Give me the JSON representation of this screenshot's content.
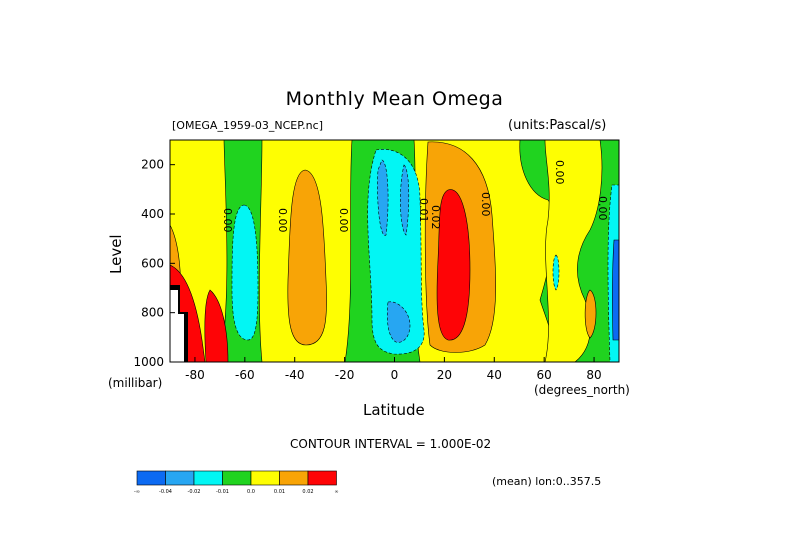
{
  "title": "Monthly Mean Omega",
  "subtitle_left": "[OMEGA_1959-03_NCEP.nc]",
  "subtitle_right": "(units:Pascal/s)",
  "axis_x_label": "Latitude",
  "axis_x_unit": "(degrees_north)",
  "axis_y_label": "Level",
  "axis_y_unit": "(millibar)",
  "contour_interval_text": "CONTOUR INTERVAL = 1.000E-02",
  "footnote": "(mean) lon:0..357.5",
  "contour_labels": [
    "0.00",
    "0.00",
    "0.00",
    "0.00",
    "0.02",
    "0.01",
    "0.00",
    "0.00"
  ],
  "chart_data": {
    "type": "heatmap",
    "x_ticks": [
      -80,
      -60,
      -40,
      -20,
      0,
      20,
      40,
      60,
      80
    ],
    "x_tick_labels": [
      "-80",
      "-60",
      "-40",
      "-20",
      "0",
      "20",
      "40",
      "60",
      "80"
    ],
    "y_ticks": [
      200,
      400,
      600,
      800,
      1000
    ],
    "y_tick_labels": [
      "200",
      "400",
      "600",
      "800",
      "1000"
    ],
    "xlim": [
      -90,
      90
    ],
    "ylim": [
      1000,
      100
    ],
    "colorbar": {
      "labels": [
        "-∞",
        "-0.04",
        "-0.02",
        "-0.01",
        "0.0",
        "0.01",
        "0.02",
        "∞"
      ],
      "colors": [
        "#0c6af2",
        "#27a6f2",
        "#02f6f4",
        "#20d31f",
        "#fefe02",
        "#f8a406",
        "#fe0406"
      ]
    },
    "bands": [
      {
        "lat": -88,
        "level": 175,
        "value": -0.005
      },
      {
        "lat": -75,
        "level": 500,
        "value": 0.005
      },
      {
        "lat": -67,
        "level": 520,
        "value": -0.015
      },
      {
        "lat": -38,
        "level": 600,
        "value": 0.015
      },
      {
        "lat": -3,
        "level": 400,
        "value": -0.025
      },
      {
        "lat": 21,
        "level": 500,
        "value": 0.025
      },
      {
        "lat": 64,
        "level": 650,
        "value": -0.015
      },
      {
        "lat": 80,
        "level": 800,
        "value": 0.015
      },
      {
        "lat": 88,
        "level": 500,
        "value": -0.03
      }
    ]
  }
}
